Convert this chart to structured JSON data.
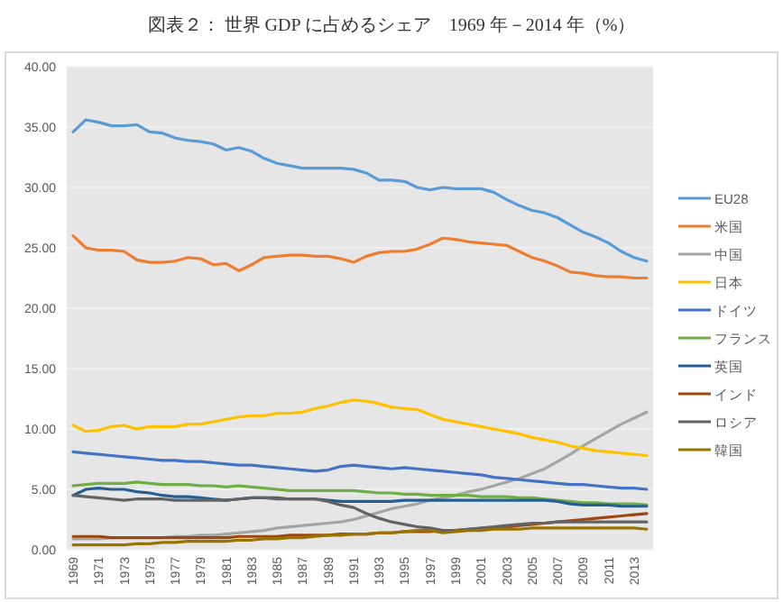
{
  "chart_data": {
    "type": "line",
    "title": "図表２： 世界 GDP に占めるシェア　1969 年－2014 年（%）",
    "categories": [
      "1969",
      null,
      "1971",
      null,
      "1973",
      null,
      "1975",
      null,
      "1977",
      null,
      "1979",
      null,
      "1981",
      null,
      "1983",
      null,
      "1985",
      null,
      "1987",
      null,
      "1989",
      null,
      "1991",
      null,
      "1993",
      null,
      "1995",
      null,
      "1997",
      null,
      "1999",
      null,
      "2001",
      null,
      "2003",
      null,
      "2005",
      null,
      "2007",
      null,
      "2009",
      null,
      "2011",
      null,
      "2013",
      null
    ],
    "ylim": [
      0,
      40
    ],
    "yticks": [
      {
        "value": 0,
        "label": "0.00"
      },
      {
        "value": 5,
        "label": "5.00"
      },
      {
        "value": 10,
        "label": "10.00"
      },
      {
        "value": 15,
        "label": "15.00"
      },
      {
        "value": 20,
        "label": "20.00"
      },
      {
        "value": 25,
        "label": "25.00"
      },
      {
        "value": 30,
        "label": "30.00"
      },
      {
        "value": 35,
        "label": "35.00"
      },
      {
        "value": 40,
        "label": "40.00"
      }
    ],
    "grid": "y",
    "legend": "right",
    "series": [
      {
        "name": "EU28",
        "color": "#5b9bd5",
        "values": [
          34.6,
          35.6,
          35.4,
          35.1,
          35.1,
          35.2,
          34.6,
          34.5,
          34.1,
          33.9,
          33.8,
          33.6,
          33.1,
          33.3,
          33.0,
          32.4,
          32.0,
          31.8,
          31.6,
          31.6,
          31.6,
          31.6,
          31.5,
          31.2,
          30.6,
          30.6,
          30.5,
          30.0,
          29.8,
          30.0,
          29.9,
          29.9,
          29.9,
          29.6,
          29.0,
          28.5,
          28.1,
          27.9,
          27.5,
          26.9,
          26.3,
          25.9,
          25.4,
          24.7,
          24.2,
          23.9
        ]
      },
      {
        "name": "米国",
        "color": "#ed7d31",
        "values": [
          26.0,
          25.0,
          24.8,
          24.8,
          24.7,
          24.0,
          23.8,
          23.8,
          23.9,
          24.2,
          24.1,
          23.6,
          23.7,
          23.1,
          23.6,
          24.2,
          24.3,
          24.4,
          24.4,
          24.3,
          24.3,
          24.1,
          23.8,
          24.3,
          24.6,
          24.7,
          24.7,
          24.9,
          25.3,
          25.8,
          25.7,
          25.5,
          25.4,
          25.3,
          25.2,
          24.7,
          24.2,
          23.9,
          23.5,
          23.0,
          22.9,
          22.7,
          22.6,
          22.6,
          22.5,
          22.5
        ]
      },
      {
        "name": "中国",
        "color": "#a5a5a5",
        "values": [
          0.9,
          0.9,
          0.9,
          1.0,
          1.0,
          1.0,
          1.0,
          1.0,
          1.1,
          1.1,
          1.2,
          1.2,
          1.3,
          1.4,
          1.5,
          1.6,
          1.8,
          1.9,
          2.0,
          2.1,
          2.2,
          2.3,
          2.5,
          2.8,
          3.1,
          3.4,
          3.6,
          3.8,
          4.1,
          4.3,
          4.5,
          4.8,
          5.0,
          5.3,
          5.6,
          5.9,
          6.3,
          6.7,
          7.3,
          7.9,
          8.6,
          9.2,
          9.8,
          10.4,
          10.9,
          11.4
        ]
      },
      {
        "name": "日本",
        "color": "#ffc000",
        "values": [
          10.3,
          9.8,
          9.9,
          10.2,
          10.3,
          10.0,
          10.2,
          10.2,
          10.2,
          10.4,
          10.4,
          10.6,
          10.8,
          11.0,
          11.1,
          11.1,
          11.3,
          11.3,
          11.4,
          11.7,
          11.9,
          12.2,
          12.4,
          12.3,
          12.1,
          11.8,
          11.7,
          11.6,
          11.2,
          10.8,
          10.6,
          10.4,
          10.2,
          10.0,
          9.8,
          9.6,
          9.3,
          9.1,
          8.9,
          8.6,
          8.4,
          8.2,
          8.1,
          8.0,
          7.9,
          7.8
        ]
      },
      {
        "name": "ドイツ",
        "color": "#4472c4",
        "values": [
          8.1,
          8.0,
          7.9,
          7.8,
          7.7,
          7.6,
          7.5,
          7.4,
          7.4,
          7.3,
          7.3,
          7.2,
          7.1,
          7.0,
          7.0,
          6.9,
          6.8,
          6.7,
          6.6,
          6.5,
          6.6,
          6.9,
          7.0,
          6.9,
          6.8,
          6.7,
          6.8,
          6.7,
          6.6,
          6.5,
          6.4,
          6.3,
          6.2,
          6.0,
          5.9,
          5.8,
          5.7,
          5.6,
          5.5,
          5.4,
          5.4,
          5.3,
          5.2,
          5.1,
          5.1,
          5.0
        ]
      },
      {
        "name": "フランス",
        "color": "#70ad47",
        "values": [
          5.3,
          5.4,
          5.5,
          5.5,
          5.5,
          5.6,
          5.5,
          5.4,
          5.4,
          5.4,
          5.3,
          5.3,
          5.2,
          5.3,
          5.2,
          5.1,
          5.0,
          4.9,
          4.9,
          4.9,
          4.9,
          4.9,
          4.9,
          4.8,
          4.7,
          4.7,
          4.6,
          4.6,
          4.5,
          4.5,
          4.5,
          4.5,
          4.4,
          4.4,
          4.4,
          4.3,
          4.3,
          4.2,
          4.1,
          4.0,
          3.9,
          3.9,
          3.8,
          3.8,
          3.8,
          3.7
        ]
      },
      {
        "name": "英国",
        "color": "#255e91",
        "values": [
          4.5,
          5.0,
          5.1,
          5.0,
          5.0,
          4.8,
          4.7,
          4.5,
          4.4,
          4.4,
          4.3,
          4.2,
          4.1,
          4.2,
          4.3,
          4.3,
          4.3,
          4.2,
          4.2,
          4.2,
          4.1,
          4.0,
          4.0,
          4.0,
          4.0,
          4.0,
          4.1,
          4.1,
          4.1,
          4.1,
          4.1,
          4.1,
          4.1,
          4.1,
          4.1,
          4.1,
          4.1,
          4.1,
          4.0,
          3.8,
          3.7,
          3.7,
          3.7,
          3.6,
          3.6,
          3.6
        ]
      },
      {
        "name": "インド",
        "color": "#9e480e",
        "values": [
          1.1,
          1.1,
          1.1,
          1.0,
          1.0,
          1.0,
          1.0,
          1.0,
          1.0,
          1.0,
          1.0,
          1.0,
          1.0,
          1.1,
          1.1,
          1.1,
          1.1,
          1.2,
          1.2,
          1.2,
          1.2,
          1.3,
          1.3,
          1.3,
          1.4,
          1.4,
          1.5,
          1.5,
          1.5,
          1.6,
          1.6,
          1.7,
          1.7,
          1.8,
          1.9,
          2.0,
          2.1,
          2.2,
          2.3,
          2.4,
          2.5,
          2.6,
          2.7,
          2.8,
          2.9,
          3.0
        ]
      },
      {
        "name": "ロシア",
        "color": "#636363",
        "values": [
          4.5,
          4.4,
          4.3,
          4.2,
          4.1,
          4.2,
          4.2,
          4.2,
          4.1,
          4.1,
          4.1,
          4.1,
          4.1,
          4.2,
          4.3,
          4.3,
          4.2,
          4.2,
          4.2,
          4.2,
          4.0,
          3.7,
          3.5,
          3.0,
          2.6,
          2.3,
          2.1,
          1.9,
          1.8,
          1.6,
          1.6,
          1.7,
          1.8,
          1.9,
          2.0,
          2.1,
          2.2,
          2.2,
          2.3,
          2.3,
          2.3,
          2.3,
          2.3,
          2.3,
          2.3,
          2.3
        ]
      },
      {
        "name": "韓国",
        "color": "#997300",
        "values": [
          0.4,
          0.4,
          0.4,
          0.4,
          0.4,
          0.5,
          0.5,
          0.6,
          0.6,
          0.7,
          0.7,
          0.7,
          0.7,
          0.8,
          0.8,
          0.9,
          0.9,
          1.0,
          1.0,
          1.1,
          1.2,
          1.2,
          1.3,
          1.3,
          1.4,
          1.4,
          1.5,
          1.6,
          1.6,
          1.4,
          1.5,
          1.6,
          1.6,
          1.7,
          1.7,
          1.7,
          1.8,
          1.8,
          1.8,
          1.8,
          1.8,
          1.8,
          1.8,
          1.8,
          1.8,
          1.7
        ]
      }
    ]
  }
}
